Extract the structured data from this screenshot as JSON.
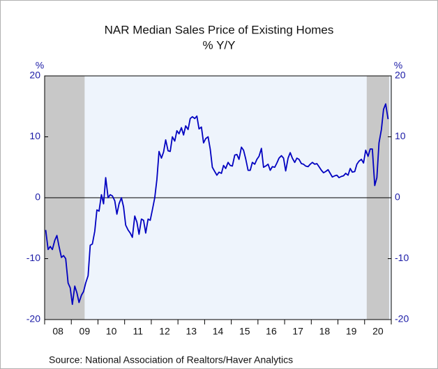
{
  "chart_data": {
    "type": "line",
    "title": "NAR Median Sales Price of Existing Homes",
    "subtitle": "% Y/Y",
    "y_unit_left": "%",
    "y_unit_right": "%",
    "source": "Source:  National Association of Realtors/Haver Analytics",
    "xlim": [
      2008,
      2021
    ],
    "xticks": [
      {
        "value": 2008.5,
        "label": "08"
      },
      {
        "value": 2009.5,
        "label": "09"
      },
      {
        "value": 2010.5,
        "label": "10"
      },
      {
        "value": 2011.5,
        "label": "11"
      },
      {
        "value": 2012.5,
        "label": "12"
      },
      {
        "value": 2013.5,
        "label": "13"
      },
      {
        "value": 2014.5,
        "label": "14"
      },
      {
        "value": 2015.5,
        "label": "15"
      },
      {
        "value": 2016.5,
        "label": "16"
      },
      {
        "value": 2017.5,
        "label": "17"
      },
      {
        "value": 2018.5,
        "label": "18"
      },
      {
        "value": 2019.5,
        "label": "19"
      },
      {
        "value": 2020.5,
        "label": "20"
      }
    ],
    "ylim": [
      -20,
      20
    ],
    "yticks": [
      -20,
      -10,
      0,
      10,
      20
    ],
    "y2lim": [
      -20,
      20
    ],
    "y2ticks": [
      -20,
      -10,
      0,
      10,
      20
    ],
    "zero_line": true,
    "shaded_regions": [
      [
        2008.0,
        2009.5
      ],
      [
        2020.08,
        2020.92
      ]
    ],
    "shade_color": "#c8c8c8",
    "plot_background": "#eef4fc",
    "x": [
      2008.04,
      2008.13,
      2008.21,
      2008.29,
      2008.38,
      2008.46,
      2008.54,
      2008.63,
      2008.71,
      2008.79,
      2008.88,
      2008.96,
      2009.04,
      2009.13,
      2009.21,
      2009.29,
      2009.38,
      2009.46,
      2009.54,
      2009.63,
      2009.71,
      2009.79,
      2009.88,
      2009.96,
      2010.04,
      2010.13,
      2010.21,
      2010.29,
      2010.38,
      2010.46,
      2010.54,
      2010.63,
      2010.71,
      2010.79,
      2010.88,
      2010.96,
      2011.04,
      2011.13,
      2011.21,
      2011.29,
      2011.38,
      2011.46,
      2011.54,
      2011.63,
      2011.71,
      2011.79,
      2011.88,
      2011.96,
      2012.04,
      2012.13,
      2012.21,
      2012.29,
      2012.38,
      2012.46,
      2012.54,
      2012.63,
      2012.71,
      2012.79,
      2012.88,
      2012.96,
      2013.04,
      2013.13,
      2013.21,
      2013.29,
      2013.38,
      2013.46,
      2013.54,
      2013.63,
      2013.71,
      2013.79,
      2013.88,
      2013.96,
      2014.04,
      2014.13,
      2014.21,
      2014.29,
      2014.38,
      2014.46,
      2014.54,
      2014.63,
      2014.71,
      2014.79,
      2014.88,
      2014.96,
      2015.04,
      2015.13,
      2015.21,
      2015.29,
      2015.38,
      2015.46,
      2015.54,
      2015.63,
      2015.71,
      2015.79,
      2015.88,
      2015.96,
      2016.04,
      2016.13,
      2016.21,
      2016.29,
      2016.38,
      2016.46,
      2016.54,
      2016.63,
      2016.71,
      2016.79,
      2016.88,
      2016.96,
      2017.04,
      2017.13,
      2017.21,
      2017.29,
      2017.38,
      2017.46,
      2017.54,
      2017.63,
      2017.71,
      2017.79,
      2017.88,
      2017.96,
      2018.04,
      2018.13,
      2018.21,
      2018.29,
      2018.38,
      2018.46,
      2018.54,
      2018.63,
      2018.71,
      2018.79,
      2018.88,
      2018.96,
      2019.04,
      2019.13,
      2019.21,
      2019.29,
      2019.38,
      2019.46,
      2019.54,
      2019.63,
      2019.71,
      2019.79,
      2019.88,
      2019.96,
      2020.04,
      2020.13,
      2020.21,
      2020.29,
      2020.38,
      2020.46,
      2020.54,
      2020.63,
      2020.71,
      2020.79,
      2020.88
    ],
    "series": [
      {
        "name": "NAR Median Sales Price of Existing Homes",
        "color": "#0000c0",
        "values": [
          -5.3,
          -8.5,
          -8,
          -8.5,
          -7,
          -6.2,
          -8,
          -9.8,
          -9.5,
          -10,
          -14,
          -14.8,
          -17.5,
          -14.5,
          -15.6,
          -17.2,
          -16,
          -15.4,
          -14,
          -12.8,
          -7.8,
          -7.6,
          -5.5,
          -2,
          -2.2,
          0.5,
          -1,
          3.3,
          0,
          0.5,
          0.3,
          -0.5,
          -2.7,
          -1,
          0,
          -1.5,
          -4.5,
          -5.3,
          -5.8,
          -6.5,
          -3,
          -4,
          -6,
          -3.5,
          -3.7,
          -5.8,
          -3.5,
          -3.7,
          -2,
          0,
          3,
          7.6,
          6.5,
          7.5,
          9.5,
          7.7,
          7.6,
          10,
          9.3,
          11,
          10.5,
          11.5,
          10.3,
          11.8,
          11.2,
          13,
          13.3,
          13,
          13.4,
          11.3,
          11.6,
          9,
          9.7,
          10,
          8,
          5,
          4.3,
          3.7,
          4.2,
          4,
          5.3,
          4.8,
          5.8,
          5.3,
          5.2,
          7,
          7.1,
          6.3,
          8.3,
          7.8,
          6.4,
          4.5,
          4.5,
          5.8,
          5.5,
          6.3,
          6.8,
          8.1,
          5,
          5.2,
          5.5,
          4.5,
          5.1,
          5,
          5.7,
          6.5,
          6.9,
          6.5,
          4.4,
          6.5,
          7.4,
          6.5,
          5.8,
          6.5,
          6.3,
          5.6,
          5.5,
          5.2,
          5.1,
          5.5,
          5.8,
          5.5,
          5.6,
          5.1,
          4.5,
          4.1,
          4.3,
          4.6,
          4,
          3.4,
          3.6,
          3.7,
          3.3,
          3.5,
          3.6,
          4,
          3.7,
          4.8,
          4.2,
          4.3,
          5.5,
          6,
          6.3,
          5.7,
          7.8,
          6.8,
          8,
          8,
          2,
          3.3,
          9,
          11.2,
          14.5,
          15.4,
          12.9
        ]
      }
    ]
  }
}
